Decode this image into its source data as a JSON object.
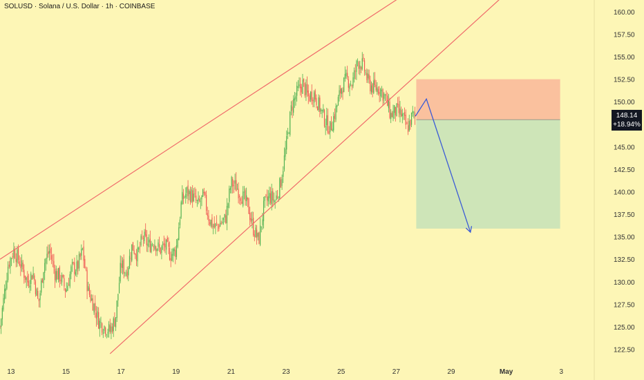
{
  "title": "SOLUSD · Solana / U.S. Dollar · 1h · COINBASE",
  "price_tag": {
    "price": "148.14",
    "change": "+18.94%"
  },
  "chart_data": {
    "type": "candlestick",
    "symbol": "SOLUSD",
    "interval": "1h",
    "exchange": "COINBASE",
    "ylim": [
      121,
      161.3
    ],
    "yticks": [
      122.5,
      125,
      127.5,
      130,
      132.5,
      135,
      137.5,
      140,
      142.5,
      145,
      147.5,
      150,
      152.5,
      155,
      157.5,
      160
    ],
    "ytick_labels": [
      "122.50",
      "125.00",
      "127.50",
      "130.00",
      "132.50",
      "135.00",
      "137.50",
      "140.00",
      "142.50",
      "145.00",
      "147.50",
      "150.00",
      "152.50",
      "155.00",
      "157.50",
      "160.00"
    ],
    "xlim_days": [
      12.6,
      34.2
    ],
    "xticks": [
      {
        "day": 13,
        "label": "13"
      },
      {
        "day": 15,
        "label": "15"
      },
      {
        "day": 17,
        "label": "17"
      },
      {
        "day": 19,
        "label": "19"
      },
      {
        "day": 21,
        "label": "21"
      },
      {
        "day": 23,
        "label": "23"
      },
      {
        "day": 25,
        "label": "25"
      },
      {
        "day": 27,
        "label": "27"
      },
      {
        "day": 29,
        "label": "29"
      },
      {
        "day": 31,
        "label": "May"
      },
      {
        "day": 33,
        "label": "3"
      }
    ],
    "last_price": 148.14,
    "close_path": [
      {
        "day": 12.6,
        "price": 125.0
      },
      {
        "day": 12.9,
        "price": 132.0
      },
      {
        "day": 13.1,
        "price": 133.5
      },
      {
        "day": 13.3,
        "price": 132.3
      },
      {
        "day": 13.6,
        "price": 130.0
      },
      {
        "day": 13.8,
        "price": 131.0
      },
      {
        "day": 14.0,
        "price": 127.5
      },
      {
        "day": 14.2,
        "price": 132.0
      },
      {
        "day": 14.4,
        "price": 133.5
      },
      {
        "day": 14.6,
        "price": 131.0
      },
      {
        "day": 14.8,
        "price": 130.5
      },
      {
        "day": 15.0,
        "price": 129.0
      },
      {
        "day": 15.2,
        "price": 131.5
      },
      {
        "day": 15.4,
        "price": 131.5
      },
      {
        "day": 15.6,
        "price": 133.5
      },
      {
        "day": 15.8,
        "price": 129.0
      },
      {
        "day": 16.0,
        "price": 127.5
      },
      {
        "day": 16.2,
        "price": 125.5
      },
      {
        "day": 16.4,
        "price": 125.0
      },
      {
        "day": 16.6,
        "price": 124.5
      },
      {
        "day": 16.8,
        "price": 126.0
      },
      {
        "day": 17.0,
        "price": 132.0
      },
      {
        "day": 17.2,
        "price": 131.0
      },
      {
        "day": 17.4,
        "price": 134.0
      },
      {
        "day": 17.6,
        "price": 133.0
      },
      {
        "day": 17.8,
        "price": 135.0
      },
      {
        "day": 18.0,
        "price": 134.0
      },
      {
        "day": 18.2,
        "price": 134.5
      },
      {
        "day": 18.4,
        "price": 133.5
      },
      {
        "day": 18.6,
        "price": 134.0
      },
      {
        "day": 18.8,
        "price": 133.0
      },
      {
        "day": 19.0,
        "price": 133.5
      },
      {
        "day": 19.2,
        "price": 139.0
      },
      {
        "day": 19.4,
        "price": 140.0
      },
      {
        "day": 19.6,
        "price": 139.5
      },
      {
        "day": 19.8,
        "price": 138.5
      },
      {
        "day": 20.0,
        "price": 139.5
      },
      {
        "day": 20.2,
        "price": 137.0
      },
      {
        "day": 20.4,
        "price": 136.0
      },
      {
        "day": 20.6,
        "price": 136.5
      },
      {
        "day": 20.8,
        "price": 137.0
      },
      {
        "day": 21.0,
        "price": 141.0
      },
      {
        "day": 21.2,
        "price": 140.5
      },
      {
        "day": 21.4,
        "price": 139.5
      },
      {
        "day": 21.6,
        "price": 138.5
      },
      {
        "day": 21.8,
        "price": 136.0
      },
      {
        "day": 22.0,
        "price": 134.5
      },
      {
        "day": 22.2,
        "price": 138.5
      },
      {
        "day": 22.4,
        "price": 139.5
      },
      {
        "day": 22.6,
        "price": 139.0
      },
      {
        "day": 22.8,
        "price": 141.0
      },
      {
        "day": 23.0,
        "price": 145.0
      },
      {
        "day": 23.2,
        "price": 149.5
      },
      {
        "day": 23.4,
        "price": 151.0
      },
      {
        "day": 23.6,
        "price": 152.0
      },
      {
        "day": 23.8,
        "price": 150.5
      },
      {
        "day": 24.0,
        "price": 151.0
      },
      {
        "day": 24.2,
        "price": 149.5
      },
      {
        "day": 24.4,
        "price": 148.0
      },
      {
        "day": 24.6,
        "price": 147.0
      },
      {
        "day": 24.8,
        "price": 149.0
      },
      {
        "day": 25.0,
        "price": 151.5
      },
      {
        "day": 25.2,
        "price": 152.5
      },
      {
        "day": 25.4,
        "price": 152.0
      },
      {
        "day": 25.6,
        "price": 154.5
      },
      {
        "day": 25.8,
        "price": 154.0
      },
      {
        "day": 26.0,
        "price": 152.0
      },
      {
        "day": 26.2,
        "price": 151.5
      },
      {
        "day": 26.4,
        "price": 151.5
      },
      {
        "day": 26.6,
        "price": 150.5
      },
      {
        "day": 26.8,
        "price": 148.5
      },
      {
        "day": 27.0,
        "price": 149.0
      },
      {
        "day": 27.2,
        "price": 148.5
      },
      {
        "day": 27.4,
        "price": 147.0
      },
      {
        "day": 27.6,
        "price": 148.5
      },
      {
        "day": 27.7,
        "price": 148.14
      }
    ],
    "trendlines": [
      {
        "name": "upper-channel",
        "points": [
          {
            "day": 12.6,
            "price": 132.5
          },
          {
            "day": 27.6,
            "price": 162.5
          }
        ]
      },
      {
        "name": "lower-channel",
        "points": [
          {
            "day": 16.6,
            "price": 122.0
          },
          {
            "day": 31.2,
            "price": 162.6
          }
        ]
      }
    ],
    "position": {
      "side": "short",
      "start_day": 27.73,
      "end_day": 32.96,
      "stop": 152.5,
      "entry": 148.0,
      "target": 135.9
    },
    "projection": [
      {
        "day": 27.7,
        "price": 148.4
      },
      {
        "day": 28.1,
        "price": 150.3
      },
      {
        "day": 29.7,
        "price": 135.5
      }
    ],
    "colors": {
      "background": "#fdf6b6",
      "up": "#4caf50",
      "down": "#ef5350",
      "trendline": "#f06a6a",
      "stop_zone": "#f9b79a",
      "target_zone": "#c9e3b8",
      "projection": "#3b5bd6"
    }
  }
}
